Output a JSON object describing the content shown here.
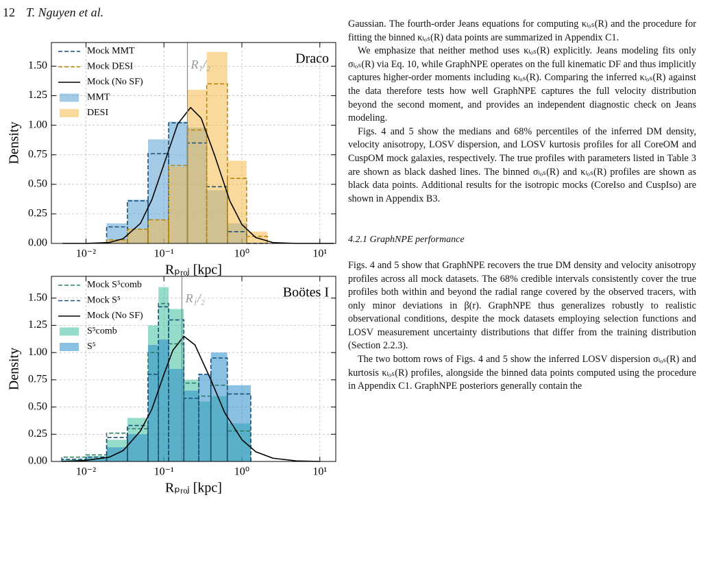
{
  "header": {
    "page_number": "12",
    "authors": "T. Nguyen et al."
  },
  "chart_data": [
    {
      "type": "histogram",
      "annotation": "Draco",
      "xlabel": "Rₚᵣₒⱼ [kpc]",
      "ylabel": "Density",
      "log_x": true,
      "grid": true,
      "legend": "upper left",
      "xlim": [
        0.0036,
        16
      ],
      "ylim": [
        0,
        1.7
      ],
      "xticks": [
        {
          "value": 0.01,
          "label": "10⁻²"
        },
        {
          "value": 0.1,
          "label": "10⁻¹"
        },
        {
          "value": 1,
          "label": "10⁰"
        },
        {
          "value": 10,
          "label": "10¹"
        }
      ],
      "yticks": [
        {
          "value": 0,
          "label": "0.00"
        },
        {
          "value": 0.25,
          "label": "0.25"
        },
        {
          "value": 0.5,
          "label": "0.50"
        },
        {
          "value": 0.75,
          "label": "0.75"
        },
        {
          "value": 1,
          "label": "1.00"
        },
        {
          "value": 1.25,
          "label": "1.25"
        },
        {
          "value": 1.5,
          "label": "1.50"
        }
      ],
      "vline": {
        "x": 0.2,
        "label": "R₁/₂"
      },
      "bins": [
        0.0184,
        0.034,
        0.0625,
        0.115,
        0.2,
        0.354,
        0.652,
        1.15,
        2.12
      ],
      "series": [
        {
          "name": "Mock MMT",
          "color": "#1a4f7a",
          "style": "step",
          "values": [
            0.14,
            0.36,
            0.76,
            1.02,
            0.85,
            0.48,
            0.1,
            0
          ]
        },
        {
          "name": "Mock DESI",
          "color": "#b8860b",
          "style": "step",
          "values": [
            0.03,
            0.12,
            0.2,
            0.66,
            0.96,
            1.35,
            0.55,
            0.06
          ]
        },
        {
          "name": "Mock (No SF)",
          "color": "#000000",
          "style": "line",
          "x": [
            0.005,
            0.01,
            0.02,
            0.03,
            0.05,
            0.07,
            0.1,
            0.15,
            0.22,
            0.3,
            0.45,
            0.7,
            1,
            1.5,
            2.5,
            5,
            10,
            15
          ],
          "values": [
            0,
            0.0003,
            0.008,
            0.04,
            0.17,
            0.37,
            0.67,
            1.01,
            1.15,
            1.06,
            0.74,
            0.36,
            0.16,
            0.05,
            0.007,
            0,
            0,
            0
          ]
        },
        {
          "name": "MMT",
          "color": "#5aa0d0",
          "style": "bar",
          "values": [
            0.17,
            0.37,
            0.88,
            1.03,
            0.98,
            0.45,
            0.17,
            0
          ]
        },
        {
          "name": "DESI",
          "color": "#f5b94a",
          "style": "bar",
          "values": [
            0.03,
            0.12,
            0.2,
            0.65,
            1.3,
            1.62,
            0.7,
            0.1
          ]
        }
      ]
    },
    {
      "type": "histogram",
      "annotation": "Boötes I",
      "xlabel": "Rₚᵣₒⱼ [kpc]",
      "ylabel": "Density",
      "log_x": true,
      "grid": true,
      "legend": "upper left",
      "xlim": [
        0.0036,
        16
      ],
      "ylim": [
        0,
        1.7
      ],
      "xticks": [
        {
          "value": 0.01,
          "label": "10⁻²"
        },
        {
          "value": 0.1,
          "label": "10⁻¹"
        },
        {
          "value": 1,
          "label": "10⁰"
        },
        {
          "value": 10,
          "label": "10¹"
        }
      ],
      "yticks": [
        {
          "value": 0,
          "label": "0.00"
        },
        {
          "value": 0.25,
          "label": "0.25"
        },
        {
          "value": 0.5,
          "label": "0.50"
        },
        {
          "value": 0.75,
          "label": "0.75"
        },
        {
          "value": 1,
          "label": "1.00"
        },
        {
          "value": 1.25,
          "label": "1.25"
        },
        {
          "value": 1.5,
          "label": "1.50"
        }
      ],
      "vline": {
        "x": 0.17,
        "label": "R₁/₂"
      },
      "bins": [
        0.0049,
        0.01,
        0.0184,
        0.034,
        0.0625,
        0.085,
        0.115,
        0.18,
        0.28,
        0.4,
        0.65,
        1.3
      ],
      "series": [
        {
          "name": "Mock S⁵comb",
          "color": "#2e7d6b",
          "style": "step",
          "values": [
            0.04,
            0.06,
            0.26,
            0.3,
            1.0,
            1.45,
            1.08,
            0.72,
            0.6,
            0.7,
            0.28
          ]
        },
        {
          "name": "Mock S⁵",
          "color": "#1a4f7a",
          "style": "step",
          "values": [
            0.02,
            0.04,
            0.22,
            0.33,
            0.8,
            1.42,
            1.3,
            0.58,
            0.8,
            0.95,
            0.62
          ]
        },
        {
          "name": "Mock (No SF)",
          "color": "#000000",
          "style": "line",
          "x": [
            0.005,
            0.01,
            0.02,
            0.03,
            0.05,
            0.07,
            0.1,
            0.13,
            0.18,
            0.25,
            0.4,
            0.6,
            1,
            1.5,
            2.5,
            5,
            10
          ],
          "values": [
            0,
            0.01,
            0.04,
            0.1,
            0.28,
            0.48,
            0.8,
            1.02,
            1.15,
            1.07,
            0.75,
            0.45,
            0.2,
            0.09,
            0.03,
            0.005,
            0
          ]
        },
        {
          "name": "S⁵comb",
          "color": "#3fbf9f",
          "style": "bar",
          "values": [
            0.02,
            0.05,
            0.2,
            0.4,
            1.25,
            1.6,
            1.4,
            0.75,
            0.55,
            0.6,
            0.35
          ]
        },
        {
          "name": "S⁵",
          "color": "#2a8cc8",
          "style": "bar",
          "values": [
            0.01,
            0.03,
            0.13,
            0.25,
            1.07,
            1.12,
            0.85,
            0.65,
            0.8,
            1.0,
            0.7
          ]
        }
      ]
    }
  ],
  "text": {
    "paragraphs_top": [
      "Gaussian. The fourth-order Jeans equations for computing κₗₒₛ(R) and the procedure for fitting the binned κₗₒₛ(R) data points are summarized in Appendix C1.",
      "We emphasize that neither method uses κₗₒₛ(R) explicitly. Jeans modeling fits only σₗₒₛ(R) via Eq. 10, while GraphNPE operates on the full kinematic DF and thus implicitly captures higher-order moments including κₗₒₛ(R). Comparing the inferred κₗₒₛ(R) against the data therefore tests how well GraphNPE captures the full velocity distribution beyond the second moment, and provides an independent diagnostic check on Jeans modeling.",
      "Figs. 4 and 5 show the medians and 68% percentiles of the inferred DM density, velocity anisotropy, LOSV dispersion, and LOSV kurtosis profiles for all CoreOM and CuspOM mock galaxies, respectively. The true profiles with parameters listed in Table 3 are shown as black dashed lines. The binned σₗₒₛ(R) and κₗₒₛ(R) profiles are shown as black data points. Additional results for the isotropic mocks (CoreIso and CuspIso) are shown in Appendix B3."
    ],
    "section_heading": "4.2.1 GraphNPE performance",
    "paragraphs_bottom": [
      "Figs. 4 and 5 show that GraphNPE recovers the true DM density and velocity anisotropy profiles across all mock datasets. The 68% credible intervals consistently cover the true profiles both within and beyond the radial range covered by the observed tracers, with only minor deviations in β(r). GraphNPE thus generalizes robustly to realistic observational conditions, despite the mock datasets employing selection functions and LOSV measurement uncertainty distributions that differ from the training distribution (Section 2.2.3).",
      "The two bottom rows of Figs. 4 and 5 show the inferred LOSV dispersion σₗₒₛ(R) and kurtosis κₗₒₛ(R) profiles, alongside the binned data points computed using the procedure in Appendix C1. GraphNPE posteriors generally contain the"
    ]
  }
}
